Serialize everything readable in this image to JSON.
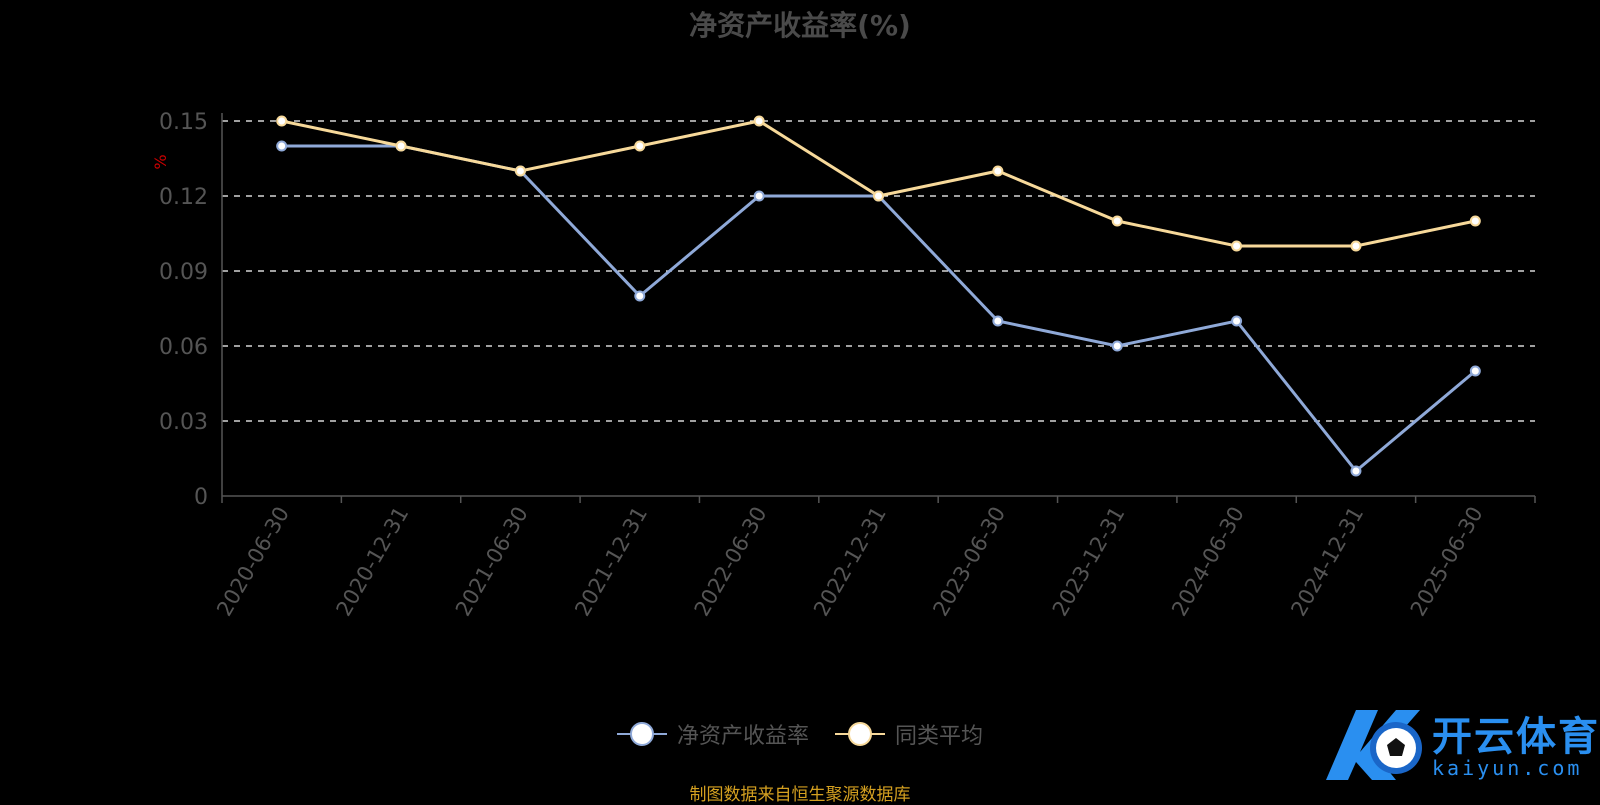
{
  "title": "净资产收益率(%)",
  "source_note": "制图数据来自恒生聚源数据库",
  "logo": {
    "cn": "开云体育",
    "en": "kaiyun.com",
    "icon": "k-soccer-ball-logo-icon"
  },
  "colors": {
    "series1": "#8fa9d8",
    "series2": "#f7d99a",
    "grid": "#ffffff",
    "axis": "#555555",
    "ylabel": "#cc0000"
  },
  "chart_data": {
    "type": "line",
    "title": "净资产收益率(%)",
    "ylabel": "%",
    "x": [
      "2020-06-30",
      "2020-12-31",
      "2021-06-30",
      "2021-12-31",
      "2022-06-30",
      "2022-12-31",
      "2023-06-30",
      "2023-12-31",
      "2024-06-30",
      "2024-12-31",
      "2025-06-30"
    ],
    "yticks": [
      "0",
      "0.03",
      "0.06",
      "0.09",
      "0.12",
      "0.15"
    ],
    "ylim": [
      0,
      0.15
    ],
    "grid": true,
    "legend_position": "bottom",
    "series": [
      {
        "name": "净资产收益率",
        "values": [
          0.14,
          0.14,
          0.13,
          0.08,
          0.12,
          0.12,
          0.07,
          0.06,
          0.07,
          0.01,
          0.05
        ]
      },
      {
        "name": "同类平均",
        "values": [
          0.15,
          0.14,
          0.13,
          0.14,
          0.15,
          0.12,
          0.13,
          0.11,
          0.1,
          0.1,
          0.11
        ]
      }
    ]
  }
}
